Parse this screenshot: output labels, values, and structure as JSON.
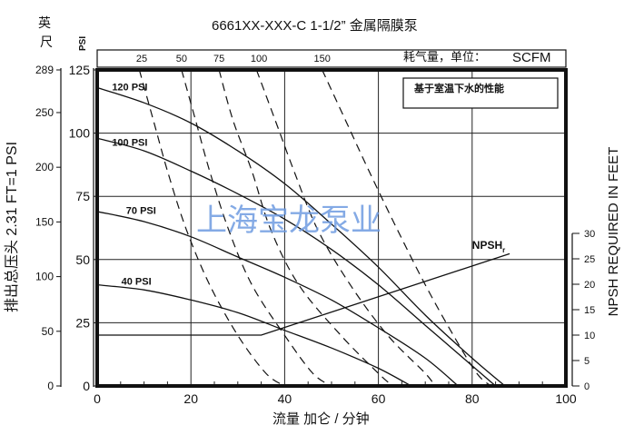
{
  "chart_data": {
    "type": "line",
    "title": "6661XX-XXX-C  1-1/2” 金属隔膜泵",
    "legend_box_text": "基于室温下水的性能",
    "watermark": "上海宝龙泵业",
    "xlabel": "流量 加仑 / 分钟",
    "ylabel_left": "排出总压头  2.31 FT=1 PSI",
    "ylabel_feet_header": "英\n尺",
    "ylabel_psi_header": "PSI",
    "ylabel_right": "NPSH REQUIRED IN FEET",
    "air_consumption_label": "耗气量，单位：",
    "air_consumption_unit": "SCFM",
    "xlim": [
      0,
      100
    ],
    "ylim_psi": [
      0,
      125
    ],
    "x_ticks": [
      0,
      20,
      40,
      60,
      80,
      100
    ],
    "y_ticks_psi": [
      0,
      25,
      50,
      75,
      100,
      125
    ],
    "y_ticks_feet": [
      0,
      50,
      100,
      150,
      200,
      250,
      289
    ],
    "npsh_ticks": [
      0,
      5,
      10,
      15,
      20,
      25,
      30
    ],
    "scfm_ticks": [
      {
        "label": "25",
        "x": 9.5
      },
      {
        "label": "50",
        "x": 18
      },
      {
        "label": "75",
        "x": 26
      },
      {
        "label": "100",
        "x": 34.5
      },
      {
        "label": "150",
        "x": 48
      }
    ],
    "pressure_curves": [
      {
        "name": "120 PSI",
        "label_at": [
          2,
          117
        ],
        "points": [
          [
            0,
            118
          ],
          [
            10,
            112
          ],
          [
            20,
            104
          ],
          [
            30,
            93
          ],
          [
            40,
            80
          ],
          [
            50,
            64
          ],
          [
            60,
            47
          ],
          [
            70,
            28
          ],
          [
            80,
            11
          ],
          [
            87,
            0
          ]
        ]
      },
      {
        "name": "100 PSI",
        "label_at": [
          2,
          95
        ],
        "points": [
          [
            0,
            98
          ],
          [
            10,
            93
          ],
          [
            20,
            85
          ],
          [
            30,
            76
          ],
          [
            40,
            66
          ],
          [
            50,
            54
          ],
          [
            60,
            40
          ],
          [
            70,
            24
          ],
          [
            80,
            8
          ],
          [
            85,
            0
          ]
        ]
      },
      {
        "name": "70 PSI",
        "label_at": [
          5,
          68
        ],
        "points": [
          [
            0,
            69
          ],
          [
            10,
            65
          ],
          [
            20,
            59
          ],
          [
            30,
            51
          ],
          [
            40,
            43
          ],
          [
            50,
            34
          ],
          [
            60,
            23
          ],
          [
            70,
            11
          ],
          [
            77,
            0
          ]
        ]
      },
      {
        "name": "40 PSI",
        "label_at": [
          4,
          40
        ],
        "points": [
          [
            0,
            40
          ],
          [
            10,
            38
          ],
          [
            20,
            34
          ],
          [
            30,
            29
          ],
          [
            40,
            22
          ],
          [
            50,
            15
          ],
          [
            60,
            7
          ],
          [
            67,
            0
          ]
        ]
      }
    ],
    "air_curves": [
      {
        "name": "25",
        "points": [
          [
            9,
            125
          ],
          [
            12,
            105
          ],
          [
            15,
            85
          ],
          [
            19,
            62
          ],
          [
            24,
            40
          ],
          [
            30,
            20
          ],
          [
            36,
            5
          ],
          [
            40,
            0
          ]
        ]
      },
      {
        "name": "50",
        "points": [
          [
            18,
            125
          ],
          [
            21,
            105
          ],
          [
            24,
            85
          ],
          [
            28,
            62
          ],
          [
            33,
            40
          ],
          [
            40,
            20
          ],
          [
            46,
            5
          ],
          [
            50,
            0
          ]
        ]
      },
      {
        "name": "75",
        "points": [
          [
            26,
            125
          ],
          [
            29,
            105
          ],
          [
            33,
            85
          ],
          [
            37,
            62
          ],
          [
            43,
            40
          ],
          [
            52,
            20
          ],
          [
            60,
            5
          ],
          [
            63,
            0
          ]
        ]
      },
      {
        "name": "100",
        "points": [
          [
            34,
            125
          ],
          [
            38,
            105
          ],
          [
            42,
            85
          ],
          [
            47,
            62
          ],
          [
            54,
            40
          ],
          [
            62,
            20
          ],
          [
            70,
            5
          ],
          [
            72,
            0
          ]
        ]
      },
      {
        "name": "150",
        "points": [
          [
            48,
            125
          ],
          [
            53,
            105
          ],
          [
            58,
            85
          ],
          [
            64,
            62
          ],
          [
            70,
            40
          ],
          [
            76,
            20
          ],
          [
            81,
            5
          ],
          [
            84,
            0
          ]
        ]
      }
    ],
    "npsh_curve": {
      "name": "NPSH",
      "subscript": "r",
      "points": [
        [
          0,
          10
        ],
        [
          35,
          10
        ],
        [
          88,
          26
        ]
      ]
    },
    "npsh_label_at": [
      80,
      27
    ],
    "grid": true
  }
}
